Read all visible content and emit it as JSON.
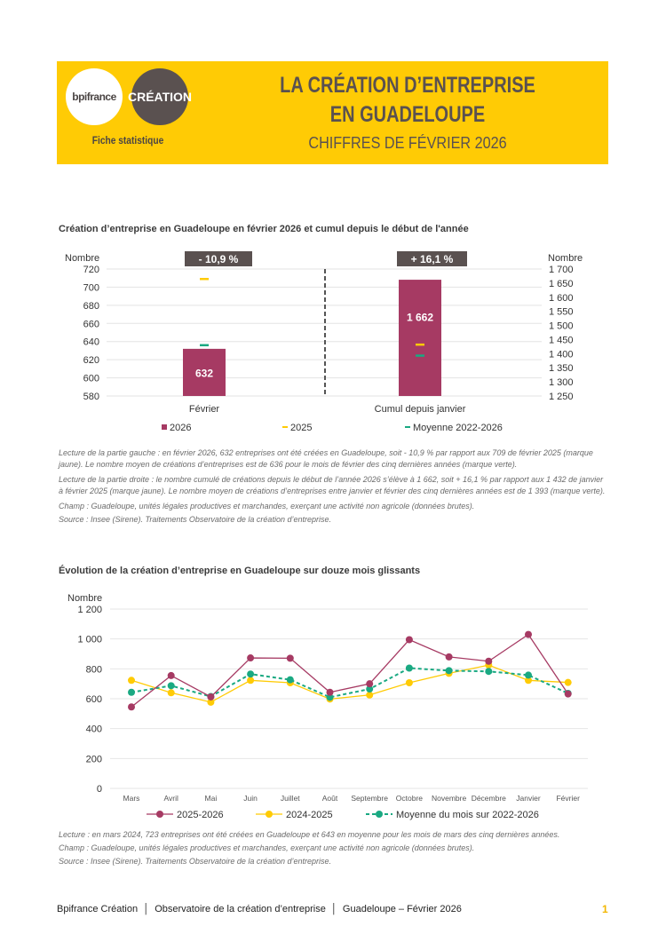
{
  "header": {
    "logo_bpifrance": "bpifrance",
    "logo_creation": "CRÉATION",
    "fiche": "Fiche statistique",
    "title_line1": "LA CRÉATION D’ENTREPRISE",
    "title_line2": "EN GUADELOUPE",
    "subtitle": "CHIFFRES DE FÉVRIER 2026",
    "banner_color": "#ffcb05"
  },
  "section1": {
    "title": "Création d’entreprise en Guadeloupe en février 2026 et cumul depuis le début de l'année",
    "notes": [
      "Lecture de la partie gauche : en février 2026, 632 entreprises ont été créées en Guadeloupe, soit - 10,9 % par rapport aux 709 de février 2025 (marque jaune). Le nombre moyen de créations d’entreprises est de 636 pour le mois de février des cinq dernières années (marque verte).",
      "Lecture de la partie droite : le nombre cumulé de créations depuis le début de l’année 2026 s’élève à 1 662, soit + 16,1 % par rapport aux 1 432 de janvier à février 2025 (marque jaune). Le nombre moyen de créations d’entreprises entre janvier et février des cinq dernières années est de 1 393 (marque verte).",
      "Champ : Guadeloupe, unités légales productives et marchandes, exerçant une activité non agricole (données brutes).",
      "Source : Insee (Sirene). Traitements Observatoire de la création d’entreprise."
    ]
  },
  "section2": {
    "title": "Évolution de la création d’entreprise en Guadeloupe sur douze mois glissants",
    "notes": [
      "Lecture : en mars 2024, 723 entreprises ont été créées en Guadeloupe et 643 en moyenne pour les mois de mars des cinq dernières années.",
      "Champ : Guadeloupe, unités légales productives et marchandes, exerçant une activité non agricole (données brutes).",
      "Source : Insee (Sirene). Traitements Observatoire de la création d’entreprise."
    ]
  },
  "chart_data": [
    {
      "type": "bar",
      "categories": [
        "Février",
        "Cumul depuis janvier"
      ],
      "ylabel_left": "Nombre",
      "ylabel_right": "Nombre",
      "ylim_left": [
        580,
        720
      ],
      "yticks_left": [
        "580",
        "600",
        "620",
        "640",
        "660",
        "680",
        "700",
        "720"
      ],
      "ylim_right": [
        1250,
        1700
      ],
      "yticks_right": [
        "1 250",
        "1 300",
        "1 350",
        "1 400",
        "1 450",
        "1 500",
        "1 550",
        "1 600",
        "1 650",
        "1 700"
      ],
      "series": [
        {
          "name": "2026",
          "values": [
            632,
            1662
          ],
          "labels": [
            "632",
            "1 662"
          ],
          "color": "#a63a63"
        },
        {
          "name": "2025",
          "values": [
            709,
            1432
          ],
          "color": "#ffcb05",
          "marker": "dash"
        },
        {
          "name": "Moyenne 2022-2026",
          "values": [
            636,
            1393
          ],
          "color": "#1aa982",
          "marker": "dash"
        }
      ],
      "badges": [
        "- 10,9 %",
        "+ 16,1 %"
      ],
      "grid": true,
      "legend": "bottom"
    },
    {
      "type": "line",
      "categories": [
        "Mars",
        "Avril",
        "Mai",
        "Juin",
        "Juillet",
        "Août",
        "Septembre",
        "Octobre",
        "Novembre",
        "Décembre",
        "Janvier",
        "Février"
      ],
      "ylabel": "Nombre",
      "ylim": [
        0,
        1200
      ],
      "yticks": [
        "0",
        "200",
        "400",
        "600",
        "800",
        "1 000",
        "1 200"
      ],
      "series": [
        {
          "name": "2025-2026",
          "values": [
            545,
            755,
            612,
            873,
            871,
            643,
            700,
            995,
            880,
            851,
            1030,
            632
          ],
          "color": "#a63a63",
          "style": "solid"
        },
        {
          "name": "2024-2025",
          "values": [
            723,
            640,
            577,
            723,
            707,
            598,
            625,
            707,
            770,
            825,
            723,
            709
          ],
          "color": "#ffcb05",
          "style": "solid"
        },
        {
          "name": "Moyenne du mois sur 2022-2026",
          "values": [
            643,
            687,
            615,
            765,
            727,
            610,
            665,
            805,
            788,
            783,
            758,
            636
          ],
          "color": "#1aa982",
          "style": "dashed"
        }
      ],
      "grid": true,
      "legend": "bottom"
    }
  ],
  "footer": {
    "text": "Bpifrance Création  │  Observatoire de la création d’entreprise  │  Guadeloupe – Février 2026",
    "page": "1"
  }
}
